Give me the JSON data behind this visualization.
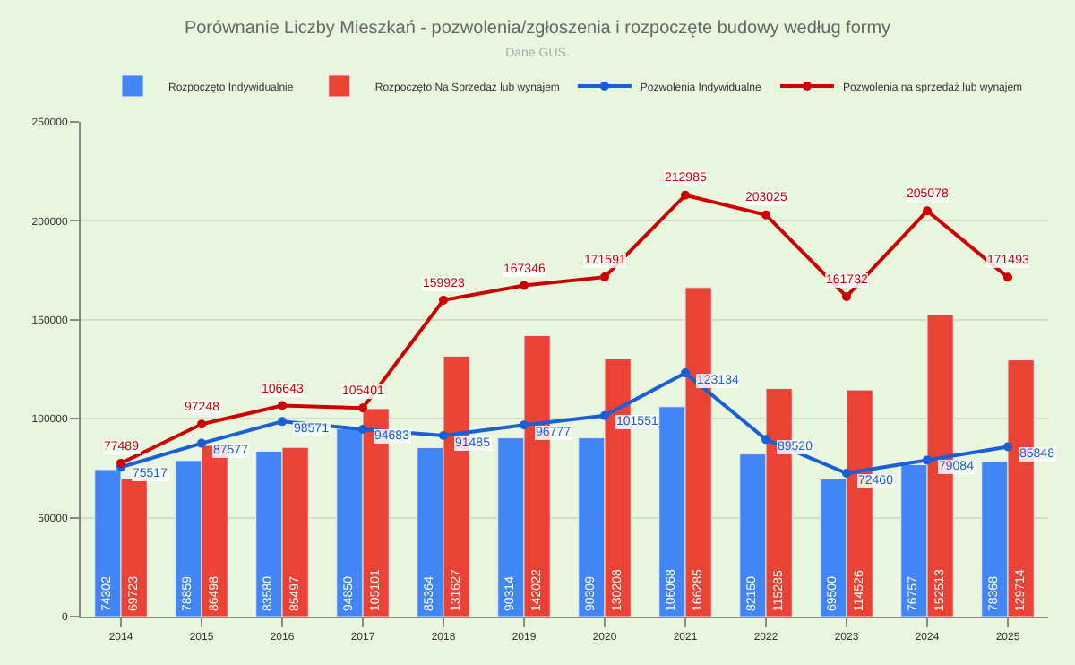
{
  "chart_data": {
    "type": "bar",
    "title": "Porównanie Liczby Mieszkań - pozwolenia/zgłoszenia i rozpoczęte budowy według formy",
    "subtitle": "Dane GUS.",
    "categories": [
      "2014",
      "2015",
      "2016",
      "2017",
      "2018",
      "2019",
      "2020",
      "2021",
      "2022",
      "2023",
      "2024",
      "2025"
    ],
    "series": [
      {
        "name": "Rozpoczęto Indywidualnie",
        "color": "#4285f4",
        "values": [
          74302,
          78859,
          83580,
          94850,
          85364,
          90314,
          90309,
          106068,
          82150,
          69500,
          76757,
          78368
        ]
      },
      {
        "name": "Rozpoczęto Na Sprzedaż lub wynajem",
        "color": "#ea4335",
        "values": [
          69723,
          86498,
          85497,
          105101,
          131627,
          142022,
          130208,
          166285,
          115285,
          114526,
          152513,
          129714
        ]
      },
      {
        "name": "Pozwolenia Indywidualne",
        "type": "line",
        "color": "#1a5fd6",
        "values": [
          75517,
          87577,
          98571,
          94683,
          91485,
          96777,
          101551,
          123134,
          89520,
          72460,
          79084,
          85848
        ]
      },
      {
        "name": "Pozwolenia na sprzedaż lub wynajem",
        "type": "line",
        "color": "#cc0000",
        "values": [
          77489,
          97248,
          106643,
          105401,
          159923,
          167346,
          171591,
          212985,
          203025,
          161732,
          205078,
          171493
        ]
      }
    ],
    "ylim": [
      0,
      250000
    ],
    "yticks": [
      0,
      50000,
      100000,
      150000,
      200000,
      250000
    ],
    "grid": "y",
    "legend": "top",
    "marker": "circle",
    "data_labels": true
  }
}
